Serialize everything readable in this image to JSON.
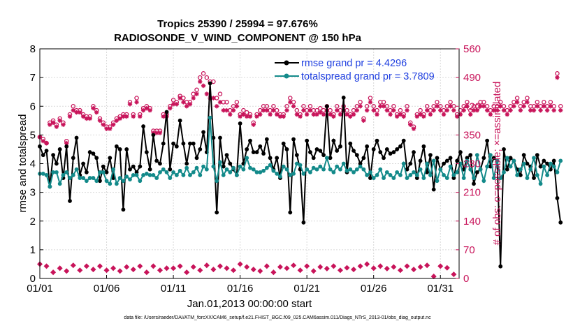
{
  "chart_data": {
    "type": "line",
    "title_line1": "Tropics 25390 / 25994 = 97.676%",
    "title_line2": "RADIOSONDE_V_WIND_COMPONENT @ 150 hPa",
    "xlabel": "Jan.01,2013 00:00:00 start",
    "ylabel_left": "rmse and totalspread",
    "ylabel_right": "# of obs: o=possible; ×=assimilated",
    "footnote": "data file: /Users/raeder/DAI/ATM_forcXX/CAM6_setup/f.e21.FHIST_BGC.f09_025.CAM6assim.011/Diags_NTrS_2013-01/obs_diag_output.nc",
    "xlim": [
      0,
      31.4
    ],
    "ylim_left": [
      0,
      8
    ],
    "ylim_right": [
      0,
      560
    ],
    "x_ticks": [
      0,
      5,
      10,
      15,
      20,
      25,
      30
    ],
    "x_tick_labels": [
      "01/01",
      "01/06",
      "01/11",
      "01/16",
      "01/21",
      "01/26",
      "01/31"
    ],
    "y_left_ticks": [
      "0",
      "1",
      "2",
      "3",
      "4",
      "5",
      "6",
      "7",
      "8"
    ],
    "y_right_ticks": [
      "0",
      "70",
      "140",
      "210",
      "280",
      "350",
      "420",
      "490",
      "560"
    ],
    "x_step_days": 0.25,
    "colors": {
      "rmse": "#000000",
      "spread": "#138a8a",
      "obs": "#c8145a",
      "legend_text": "#1f3fe0"
    },
    "series": [
      {
        "name": "rmse grand pr = 4.4296",
        "values": [
          4.6,
          4.3,
          4.45,
          3.2,
          4.3,
          4.0,
          4.5,
          3.5,
          4.6,
          2.7,
          4.2,
          4.9,
          3.6,
          4.0,
          3.7,
          4.4,
          4.35,
          4.2,
          3.4,
          3.9,
          3.7,
          4.2,
          3.5,
          4.6,
          4.5,
          2.4,
          4.5,
          3.8,
          3.9,
          3.7,
          3.9,
          5.3,
          4.4,
          3.8,
          5.0,
          4.1,
          4.0,
          4.7,
          5.8,
          3.8,
          4.7,
          4.6,
          5.5,
          4.7,
          4.0,
          4.7,
          4.7,
          4.2,
          4.5,
          5.1,
          4.4,
          6.8,
          4.9,
          2.3,
          4.9,
          3.9,
          4.3,
          4.0,
          3.8,
          3.6,
          5.4,
          4.0,
          4.5,
          4.8,
          4.4,
          4.4,
          4.6,
          4.35,
          4.85,
          4.2,
          3.8,
          4.2,
          3.5,
          4.7,
          4.5,
          2.3,
          4.85,
          4.3,
          3.8,
          1.95,
          4.8,
          4.4,
          4.2,
          4.5,
          4.45,
          4.3,
          6.0,
          4.2,
          4.8,
          4.45,
          4.6,
          6.3,
          3.7,
          4.7,
          4.45,
          4.3,
          4.0,
          4.2,
          4.6,
          3.5,
          4.5,
          4.8,
          4.4,
          4.2,
          4.5,
          4.35,
          4.4,
          4.5,
          4.6,
          4.8,
          3.8,
          4.0,
          4.4,
          3.5,
          4.1,
          4.6,
          3.7,
          4.3,
          3.1,
          4.2,
          3.8,
          4.0,
          4.1,
          4.2,
          3.5,
          4.1,
          4.4,
          3.8,
          4.2,
          4.3,
          3.3,
          3.7,
          3.8,
          4.2,
          4.8,
          3.9,
          4.2,
          4.1,
          0.42,
          4.5,
          3.8,
          4.2,
          4.1,
          3.8,
          3.6,
          4.3,
          4.0,
          3.9,
          3.5,
          4.3,
          3.9,
          4.1,
          4.0,
          3.8,
          4.1,
          2.8,
          1.95
        ]
      },
      {
        "name": "totalspread grand pr = 3.7809",
        "values": [
          3.65,
          3.65,
          3.6,
          3.2,
          3.7,
          3.7,
          3.3,
          3.6,
          3.7,
          3.5,
          3.6,
          3.8,
          3.5,
          3.5,
          3.4,
          3.5,
          3.5,
          3.4,
          3.7,
          3.7,
          3.4,
          3.3,
          3.8,
          3.3,
          3.5,
          3.4,
          3.55,
          3.45,
          3.6,
          3.6,
          3.4,
          3.6,
          3.65,
          3.6,
          3.6,
          3.5,
          3.7,
          3.8,
          3.7,
          3.5,
          3.7,
          3.6,
          3.75,
          3.6,
          3.85,
          3.6,
          3.7,
          3.85,
          3.6,
          3.9,
          3.8,
          5.6,
          3.9,
          3.4,
          4.05,
          3.6,
          3.8,
          3.7,
          3.85,
          3.6,
          3.9,
          3.8,
          4.2,
          3.85,
          3.8,
          3.7,
          3.7,
          3.75,
          3.85,
          3.95,
          3.75,
          3.65,
          3.55,
          3.9,
          3.8,
          3.6,
          3.65,
          4.0,
          3.95,
          3.65,
          3.8,
          3.7,
          3.85,
          3.8,
          3.9,
          3.8,
          4.2,
          3.8,
          3.7,
          3.9,
          3.8,
          4.0,
          3.75,
          3.8,
          3.7,
          3.8,
          3.9,
          3.8,
          3.6,
          3.7,
          3.5,
          3.6,
          3.8,
          3.5,
          3.7,
          3.6,
          3.5,
          3.7,
          3.6,
          4.0,
          3.5,
          3.6,
          3.7,
          3.6,
          3.8,
          3.5,
          4.0,
          3.6,
          4.1,
          3.4,
          3.8,
          3.6,
          3.5,
          3.9,
          3.6,
          3.7,
          4.0,
          3.5,
          4.1,
          3.8,
          3.5,
          4.3,
          3.8,
          3.4,
          3.9,
          4.3,
          3.5,
          4.1,
          3.5,
          3.7,
          4.2,
          3.9,
          4.1,
          3.6,
          3.8,
          4.0,
          3.5,
          3.8,
          4.2,
          3.6,
          3.3,
          3.9,
          3.6,
          4.0,
          3.9,
          3.7,
          4.1
        ]
      }
    ],
    "obs_possible": [
      345,
      340,
      330,
      380,
      385,
      375,
      390,
      380,
      335,
      400,
      420,
      410,
      410,
      400,
      395,
      395,
      420,
      410,
      390,
      380,
      370,
      370,
      380,
      390,
      395,
      400,
      400,
      430,
      400,
      440,
      400,
      415,
      420,
      415,
      360,
      360,
      360,
      400,
      400,
      420,
      435,
      430,
      445,
      440,
      430,
      430,
      450,
      460,
      490,
      500,
      490,
      480,
      480,
      440,
      450,
      430,
      430,
      410,
      420,
      430,
      400,
      410,
      405,
      400,
      380,
      400,
      410,
      420,
      420,
      410,
      420,
      410,
      400,
      400,
      420,
      440,
      430,
      410,
      400,
      420,
      410,
      420,
      410,
      410,
      415,
      410,
      420,
      410,
      400,
      420,
      410,
      420,
      410,
      400,
      410,
      420,
      430,
      390,
      420,
      440,
      420,
      410,
      430,
      430,
      420,
      410,
      420,
      400,
      410,
      400,
      420,
      380,
      370,
      400,
      410,
      400,
      420,
      410,
      420,
      430,
      420,
      410,
      420,
      430,
      420,
      400,
      410,
      420,
      430,
      410,
      420,
      420,
      430,
      430,
      420,
      410,
      420,
      420,
      430,
      420,
      410,
      420,
      430,
      440,
      420,
      430,
      440,
      420,
      420,
      430,
      420,
      430,
      420,
      430,
      420,
      500,
      420
    ],
    "obs_assimilated": [
      345,
      335,
      330,
      375,
      380,
      370,
      385,
      375,
      330,
      395,
      410,
      405,
      405,
      395,
      390,
      390,
      415,
      405,
      385,
      375,
      365,
      365,
      375,
      385,
      390,
      395,
      395,
      425,
      395,
      430,
      395,
      410,
      415,
      410,
      355,
      355,
      355,
      395,
      395,
      415,
      425,
      425,
      440,
      430,
      420,
      425,
      440,
      450,
      480,
      470,
      450,
      440,
      440,
      420,
      430,
      410,
      410,
      400,
      410,
      420,
      395,
      400,
      395,
      395,
      375,
      395,
      400,
      410,
      410,
      400,
      410,
      400,
      395,
      395,
      410,
      430,
      420,
      400,
      395,
      410,
      400,
      410,
      400,
      400,
      405,
      400,
      410,
      400,
      395,
      410,
      400,
      410,
      400,
      395,
      400,
      410,
      420,
      385,
      410,
      430,
      410,
      400,
      420,
      420,
      410,
      400,
      410,
      395,
      400,
      395,
      410,
      375,
      365,
      395,
      400,
      395,
      410,
      400,
      410,
      420,
      410,
      400,
      410,
      420,
      410,
      395,
      400,
      410,
      420,
      400,
      410,
      410,
      420,
      420,
      410,
      400,
      410,
      410,
      420,
      410,
      400,
      410,
      420,
      430,
      410,
      420,
      430,
      410,
      410,
      420,
      410,
      420,
      410,
      420,
      410,
      490,
      410
    ]
  }
}
